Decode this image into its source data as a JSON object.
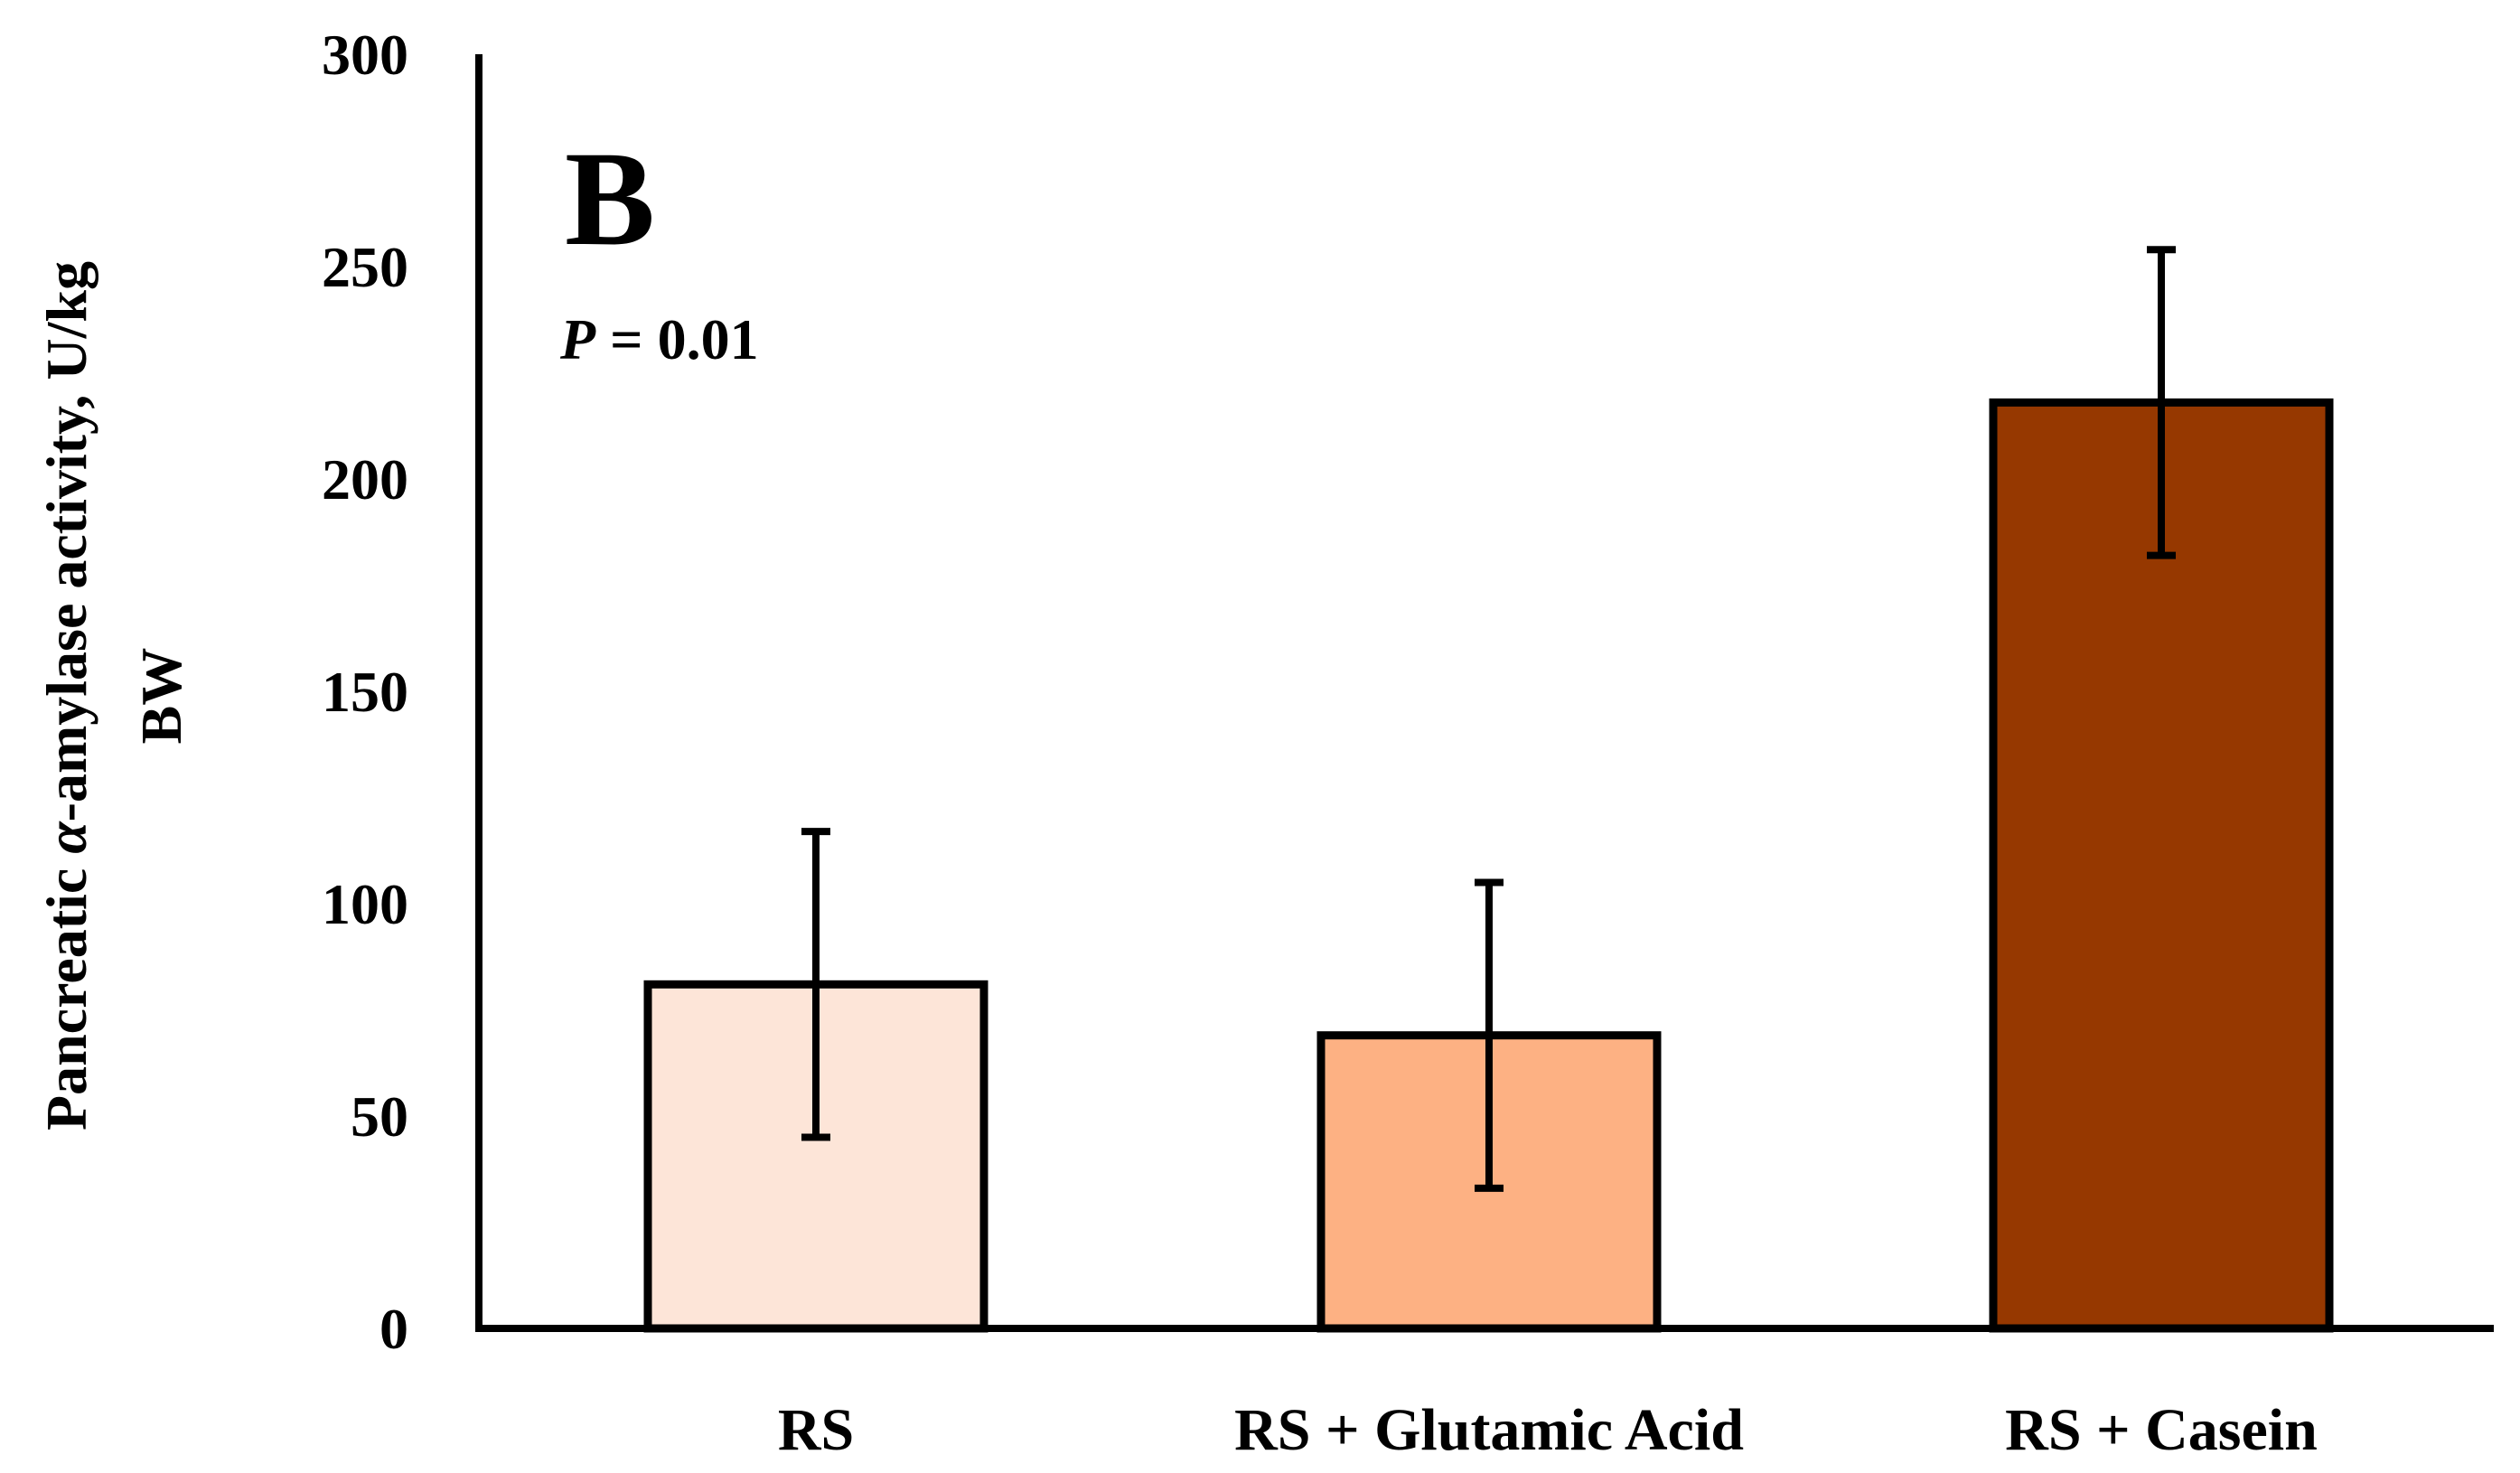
{
  "chart_data": {
    "type": "bar",
    "panel_label": "B",
    "annotation": {
      "symbol": "P",
      "text": " = 0.01"
    },
    "categories": [
      "RS",
      "RS + Glutamic Acid",
      "RS + Casein"
    ],
    "values": [
      81,
      69,
      218
    ],
    "errors": [
      36,
      36,
      36
    ],
    "colors": [
      "#FDE5D8",
      "#FDB183",
      "#963800"
    ],
    "edge_color": "#000000",
    "ylabel": {
      "line1_prefix": "Pancreatic ",
      "line1_symbol": "α",
      "line1_suffix": "-amylase activity, U/kg",
      "line2": "BW"
    },
    "xlabel": "",
    "ylim": [
      0,
      300
    ],
    "yticks": [
      0,
      50,
      100,
      150,
      200,
      250,
      300
    ],
    "grid": false
  }
}
